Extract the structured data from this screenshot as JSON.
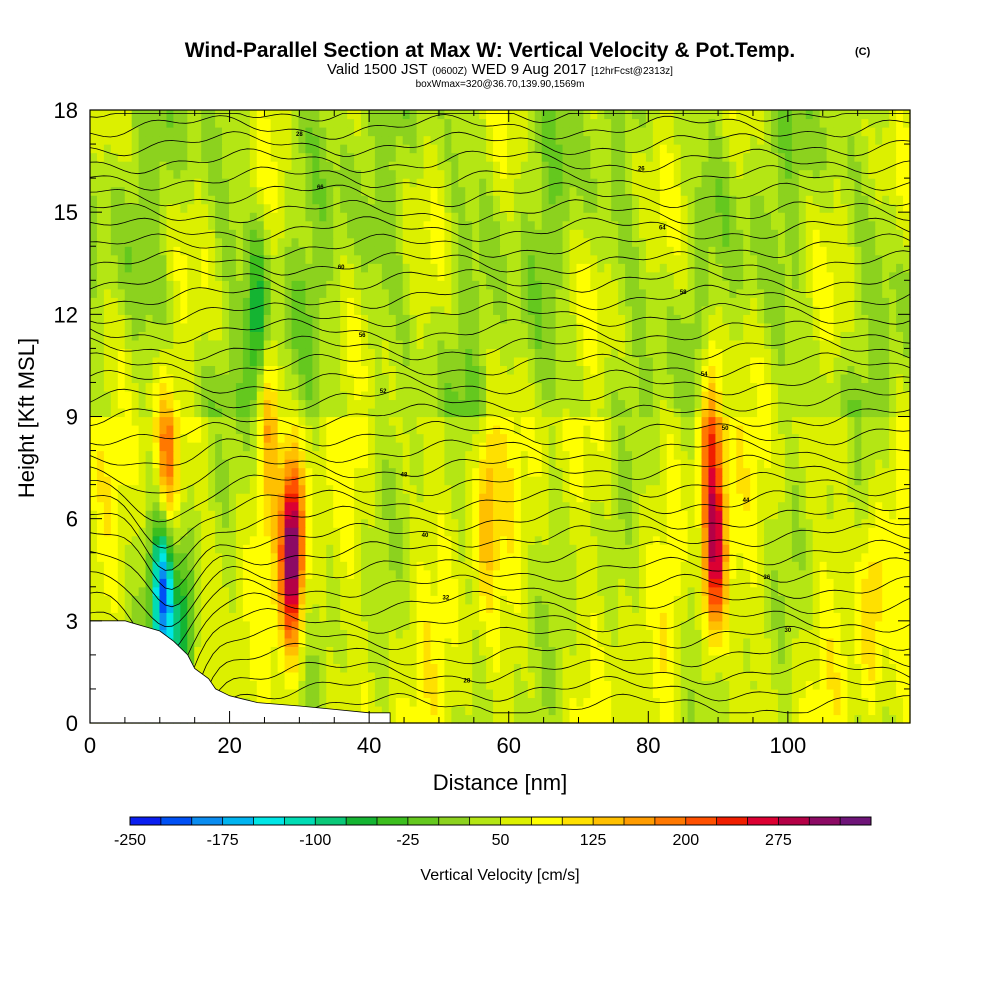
{
  "title": {
    "main": "Wind-Parallel Section at Max W: Vertical Velocity & Pot.Temp.",
    "copyright": "(C)",
    "valid_prefix": "Valid 1500 JST",
    "valid_utc": "(0600Z)",
    "valid_date": "WED 9 Aug 2017",
    "forecast": "[12hrFcst@2313z]",
    "box": "boxWmax=320@36.70,139.90,1569m"
  },
  "chart_data": {
    "type": "heatmap",
    "xlabel": "Distance [nm]",
    "ylabel": "Height [Kft MSL]",
    "xlim": [
      0,
      117.5
    ],
    "ylim": [
      0,
      18
    ],
    "xticks": [
      0,
      20,
      40,
      60,
      80,
      100
    ],
    "xtick_labels": [
      "0",
      "20",
      "40",
      "60",
      "80",
      "100"
    ],
    "yticks": [
      0,
      3,
      6,
      9,
      12,
      15,
      18
    ],
    "ytick_labels": [
      "0",
      "3",
      "6",
      "9",
      "12",
      "15",
      "18"
    ],
    "colorbar": {
      "label": "Vertical Velocity [cm/s]",
      "ticks": [
        "-250",
        "-175",
        "-100",
        "-25",
        "50",
        "125",
        "200",
        "275"
      ],
      "colors": [
        "#0a1ef0",
        "#0050f5",
        "#0a8cf0",
        "#00b4f0",
        "#00e6e6",
        "#00dcb4",
        "#0ac878",
        "#14b432",
        "#3cbe1e",
        "#64c81e",
        "#8cd21e",
        "#b4e614",
        "#dcf000",
        "#ffff00",
        "#ffe000",
        "#ffc000",
        "#ff9c00",
        "#ff7800",
        "#ff5000",
        "#f01e00",
        "#dc0032",
        "#b40046",
        "#8c0a64",
        "#6e1478"
      ]
    },
    "terrain": [
      [
        0,
        3.0
      ],
      [
        5,
        3.0
      ],
      [
        10,
        2.7
      ],
      [
        12,
        2.4
      ],
      [
        14,
        2.0
      ],
      [
        15,
        1.6
      ],
      [
        17,
        1.3
      ],
      [
        18,
        1.0
      ],
      [
        20,
        0.8
      ],
      [
        22,
        0.7
      ],
      [
        24,
        0.6
      ],
      [
        30,
        0.5
      ],
      [
        35,
        0.4
      ],
      [
        40,
        0.3
      ],
      [
        43,
        0.3
      ]
    ],
    "features": [
      {
        "x": 10.5,
        "y": 3.8,
        "w": -250
      },
      {
        "x": 13.5,
        "y": 2.5,
        "w": -150
      },
      {
        "x": 11.0,
        "y": 7.5,
        "w": 150
      },
      {
        "x": 24.0,
        "y": 11.5,
        "w": -120
      },
      {
        "x": 25.5,
        "y": 9.5,
        "w": 100
      },
      {
        "x": 29.0,
        "y": 5.0,
        "w": 280
      },
      {
        "x": 57.0,
        "y": 6.5,
        "w": 80
      },
      {
        "x": 89.5,
        "y": 5.0,
        "w": 220
      },
      {
        "x": 89.0,
        "y": 9.0,
        "w": 150
      },
      {
        "x": 86.0,
        "y": 3.0,
        "w": -40
      },
      {
        "x": 112.0,
        "y": 3.5,
        "w": 70
      }
    ],
    "theta_isentropes": {
      "count": 36,
      "labels_sample": [
        "26",
        "28",
        "30",
        "32",
        "36",
        "40",
        "44",
        "48",
        "50",
        "52",
        "54",
        "56",
        "58",
        "60",
        "64",
        "66"
      ]
    }
  }
}
